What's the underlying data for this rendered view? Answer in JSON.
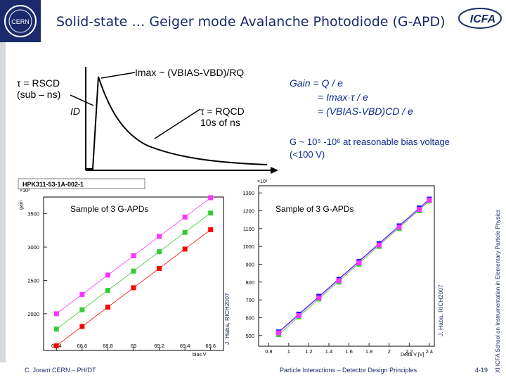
{
  "slide": {
    "title": "Solid-state … Geiger mode Avalanche Photodiode (G-APD)",
    "footer_left": "C. Joram CERN – PH/DT",
    "footer_center": "Particle Interactions – Detector Design Principles",
    "footer_right": "4-19",
    "side_note": "XI ICFA School on Instrumentation in Elementary Particle Physics",
    "left_logo": "CERN",
    "right_logo": "ICFA"
  },
  "pulse": {
    "imax": "Imax ~ (VBIAS-VBD)/RQ",
    "tau_s": "τ = RSCD",
    "tau_s_note": "(sub – ns)",
    "id_label": "ID",
    "tau_q": "τ = RQCD",
    "tau_q_note": "10s of ns"
  },
  "gain": {
    "line1": "Gain = Q / e",
    "line2": "= Imax·τ / e",
    "line3": "= (VBIAS-VBD)CD / e",
    "g_note_1": "G ~ 10⁵ -10⁶ at reasonable bias voltage",
    "g_note_2": "(<100 V)"
  },
  "colors": {
    "title": "#1a2a6c",
    "blue": "#0a2a8a",
    "series_pink": "#ff33ff",
    "series_green": "#33cc33",
    "series_red": "#ff0000",
    "series_blue": "#0000ff"
  },
  "left_chart": {
    "device": "HPK311-53-1A-002-1",
    "sample_label": "Sample of 3 G-APDs",
    "credit": "J. Haba, RICH2007",
    "y_unit": "×10³",
    "y_axis_title": "gain",
    "x_axis_title": "bias V"
  },
  "right_chart": {
    "sample_label": "Sample of 3 G-APDs",
    "credit": "J. Haba, RICH2007",
    "y_unit": "×10³",
    "x_axis_title": "Delta V [V]"
  },
  "chart_data": [
    {
      "type": "scatter",
      "title": "HPK311-53-1A-002-1",
      "xlabel": "bias V",
      "ylabel": "gain",
      "x_ticks": [
        "68.4",
        "68.6",
        "68.8",
        "69",
        "69.2",
        "69.4",
        "69.6"
      ],
      "y_ticks": [
        "2000",
        "2500",
        "3000",
        "3500"
      ],
      "xlim": [
        68.3,
        69.7
      ],
      "ylim": [
        1450,
        3750
      ],
      "series": [
        {
          "color": "#ff33ff",
          "x": [
            68.4,
            68.6,
            68.8,
            69.0,
            69.2,
            69.4,
            69.6
          ],
          "y": [
            2000,
            2290,
            2580,
            2870,
            3160,
            3450,
            3740
          ]
        },
        {
          "color": "#33cc33",
          "x": [
            68.4,
            68.6,
            68.8,
            69.0,
            69.2,
            69.4,
            69.6
          ],
          "y": [
            1770,
            2060,
            2350,
            2640,
            2930,
            3220,
            3510
          ]
        },
        {
          "color": "#ff0000",
          "x": [
            68.4,
            68.6,
            68.8,
            69.0,
            69.2,
            69.4,
            69.6
          ],
          "y": [
            1520,
            1810,
            2100,
            2390,
            2680,
            2970,
            3260
          ]
        }
      ]
    },
    {
      "type": "scatter",
      "xlabel": "Delta V [V]",
      "x_ticks": [
        "0.8",
        "1",
        "1.2",
        "1.4",
        "1.6",
        "1.8",
        "2",
        "2.2",
        "2.4"
      ],
      "y_ticks": [
        "500",
        "600",
        "700",
        "800",
        "900",
        "1000",
        "1100",
        "1200",
        "1300"
      ],
      "xlim": [
        0.7,
        2.45
      ],
      "ylim": [
        440,
        1340
      ],
      "series": [
        {
          "color": "#33cc33",
          "x": [
            0.9,
            1.1,
            1.3,
            1.5,
            1.7,
            1.9,
            2.1,
            2.3,
            2.4
          ],
          "y": [
            505,
            605,
            705,
            800,
            900,
            1000,
            1100,
            1200,
            1255
          ]
        },
        {
          "color": "#0000ff",
          "x": [
            0.9,
            1.1,
            1.3,
            1.5,
            1.7,
            1.9,
            2.1,
            2.3,
            2.4
          ],
          "y": [
            520,
            620,
            720,
            815,
            915,
            1015,
            1115,
            1215,
            1265
          ]
        },
        {
          "color": "#ff33ff",
          "x": [
            0.9,
            1.1,
            1.3,
            1.5,
            1.7,
            1.9,
            2.1,
            2.3,
            2.4
          ],
          "y": [
            515,
            612,
            712,
            808,
            908,
            1008,
            1108,
            1208,
            1260
          ]
        }
      ]
    }
  ]
}
